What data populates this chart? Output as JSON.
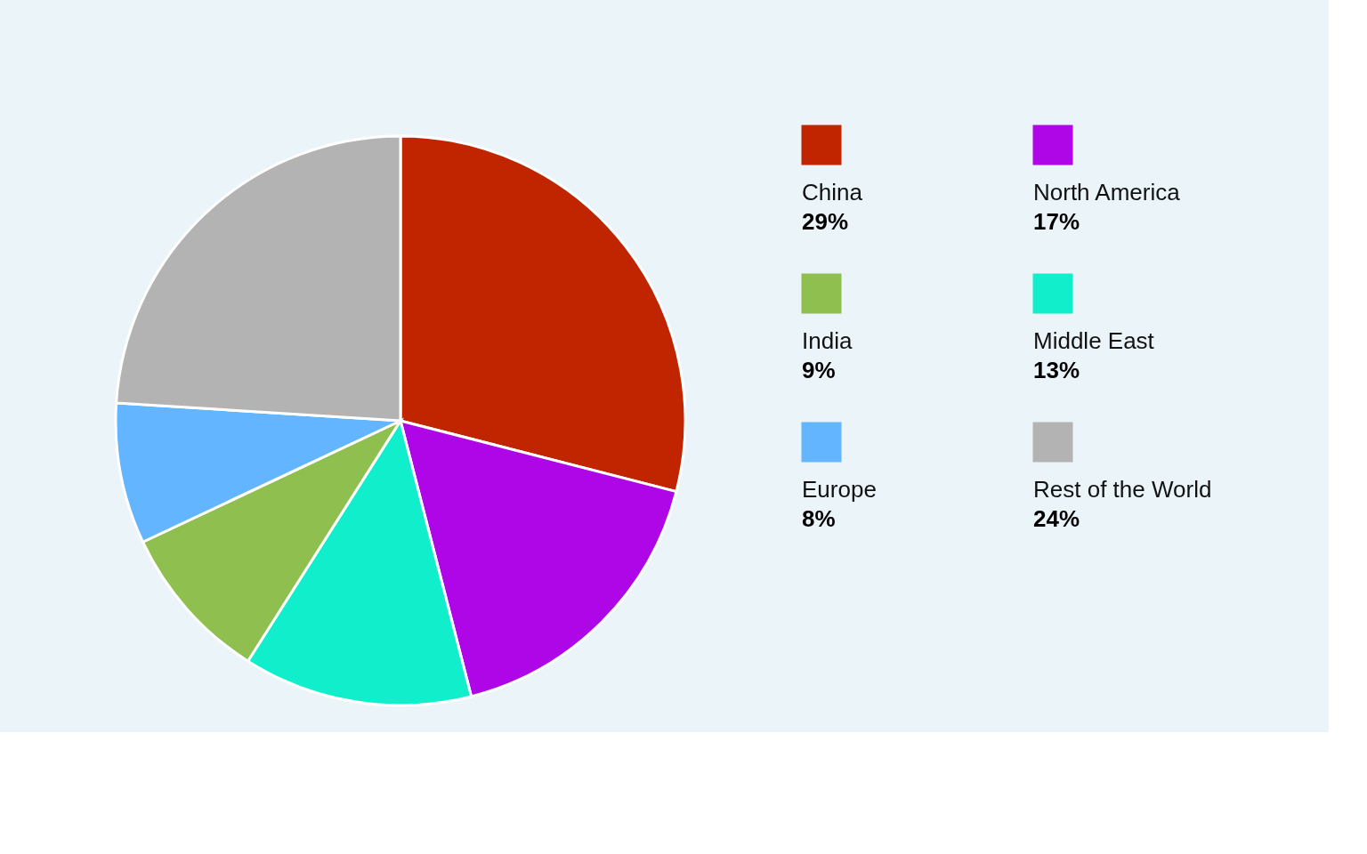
{
  "chart_data": {
    "type": "pie",
    "categories": [
      "China",
      "North America",
      "Middle East",
      "India",
      "Europe",
      "Rest of the World"
    ],
    "values": [
      29,
      17,
      13,
      9,
      8,
      24
    ],
    "colors": [
      "#c12500",
      "#ae06e6",
      "#11eecc",
      "#8fbf4f",
      "#62b5fe",
      "#b3b3b3"
    ],
    "value_labels": [
      "29%",
      "17%",
      "13%",
      "9%",
      "8%",
      "24%"
    ],
    "legend": "right"
  }
}
